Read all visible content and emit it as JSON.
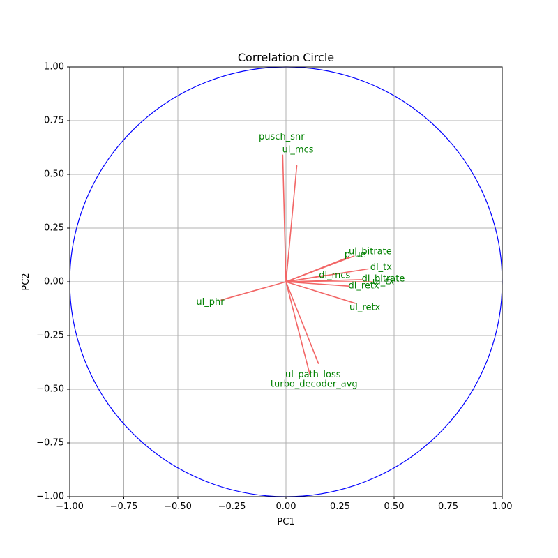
{
  "chart_data": {
    "type": "scatter",
    "title": "Correlation Circle",
    "xlabel": "PC1",
    "ylabel": "PC2",
    "xlim": [
      -1.0,
      1.0
    ],
    "ylim": [
      -1.0,
      1.0
    ],
    "grid": true,
    "xticks": [
      -1.0,
      -0.75,
      -0.5,
      -0.25,
      0.0,
      0.25,
      0.5,
      0.75,
      1.0
    ],
    "yticks": [
      -1.0,
      -0.75,
      -0.5,
      -0.25,
      0.0,
      0.25,
      0.5,
      0.75,
      1.0
    ],
    "xtick_labels": [
      "−1.00",
      "−0.75",
      "−0.50",
      "−0.25",
      "0.00",
      "0.25",
      "0.50",
      "0.75",
      "1.00"
    ],
    "ytick_labels": [
      "−1.00",
      "−0.75",
      "−0.50",
      "−0.25",
      "0.00",
      "0.25",
      "0.50",
      "0.75",
      "1.00"
    ],
    "circle_radius": 1.0,
    "colors": {
      "circle": "#0000ff",
      "arrow": "#f26666",
      "label": "#008000",
      "grid": "#b0b0b0"
    },
    "vectors": [
      {
        "name": "pusch_snr",
        "x": -0.015,
        "y": 0.59,
        "label_x": -0.02,
        "label_y": 0.673
      },
      {
        "name": "ul_mcs",
        "x": 0.05,
        "y": 0.54,
        "label_x": 0.055,
        "label_y": 0.613
      },
      {
        "name": "p_ue",
        "x": 0.29,
        "y": 0.115,
        "label_x": 0.32,
        "label_y": 0.125
      },
      {
        "name": "ul_bitrate",
        "x": 0.315,
        "y": 0.12,
        "label_x": 0.39,
        "label_y": 0.14
      },
      {
        "name": "dl_tx",
        "x": 0.38,
        "y": 0.06,
        "label_x": 0.44,
        "label_y": 0.067
      },
      {
        "name": "dl_mcs",
        "x": 0.18,
        "y": 0.03,
        "label_x": 0.225,
        "label_y": 0.03
      },
      {
        "name": "dl_bitrate",
        "x": 0.35,
        "y": 0.01,
        "label_x": 0.45,
        "label_y": 0.013
      },
      {
        "name": "ul_tx",
        "x": 0.4,
        "y": 0.0,
        "label_x": 0.45,
        "label_y": 0.0
      },
      {
        "name": "dl_retx",
        "x": 0.29,
        "y": -0.02,
        "label_x": 0.36,
        "label_y": -0.02
      },
      {
        "name": "ul_retx",
        "x": 0.32,
        "y": -0.1,
        "label_x": 0.365,
        "label_y": -0.12
      },
      {
        "name": "ul_phr",
        "x": -0.3,
        "y": -0.085,
        "label_x": -0.35,
        "label_y": -0.095
      },
      {
        "name": "ul_path_loss",
        "x": 0.15,
        "y": -0.38,
        "label_x": 0.125,
        "label_y": -0.433
      },
      {
        "name": "turbo_decoder_avg",
        "x": 0.11,
        "y": -0.43,
        "label_x": 0.13,
        "label_y": -0.478
      }
    ]
  }
}
